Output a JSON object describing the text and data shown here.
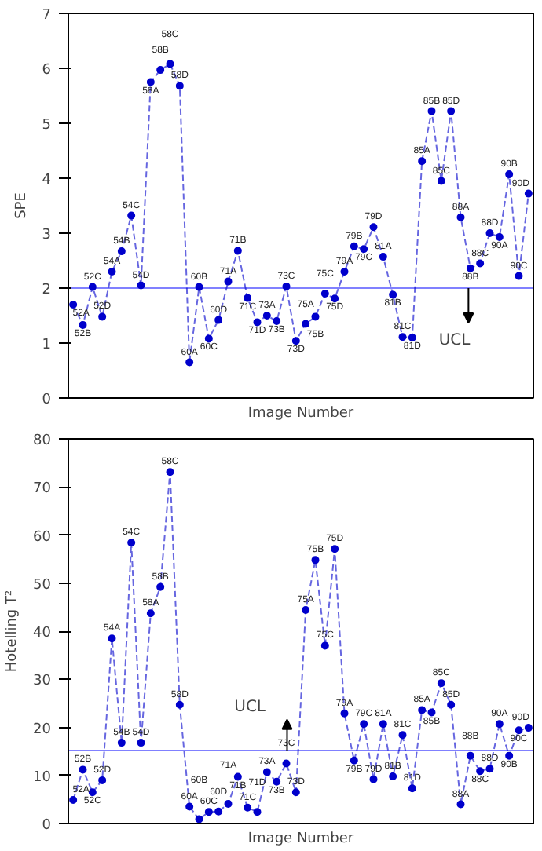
{
  "chart_data": [
    {
      "type": "line",
      "xlabel": "Image Number",
      "ylabel": "SPE",
      "categories": [
        "52A",
        "52B",
        "52C",
        "52D",
        "54A",
        "54B",
        "54C",
        "54D",
        "58A",
        "58B",
        "58C",
        "58D",
        "60A",
        "60B",
        "60C",
        "60D",
        "71A",
        "71B",
        "71C",
        "71D",
        "73A",
        "73B",
        "73C",
        "73D",
        "75A",
        "75B",
        "75C",
        "75D",
        "79A",
        "79B",
        "79C",
        "79D",
        "81A",
        "81B",
        "81C",
        "81D",
        "85A",
        "85B",
        "85C",
        "85D",
        "88A",
        "88B",
        "88C",
        "88D",
        "90A",
        "90B",
        "90C",
        "90D"
      ],
      "series": [
        {
          "color": "#0000cc",
          "values": [
            1.7,
            1.33,
            2.02,
            1.48,
            2.3,
            2.67,
            3.32,
            2.05,
            5.75,
            5.97,
            6.08,
            5.68,
            0.65,
            2.02,
            1.08,
            1.42,
            2.12,
            2.68,
            1.82,
            1.38,
            1.5,
            1.4,
            2.03,
            1.04,
            1.35,
            1.48,
            1.9,
            1.81,
            2.3,
            2.76,
            2.71,
            3.11,
            2.57,
            1.88,
            1.11,
            1.1,
            4.31,
            5.22,
            3.95,
            5.22,
            3.29,
            2.36,
            2.45,
            3.0,
            2.93,
            4.07,
            2.22,
            3.72
          ]
        }
      ],
      "ylim": [
        0,
        7
      ],
      "yticks": [
        0,
        1,
        2,
        3,
        4,
        5,
        6,
        7
      ],
      "marker": "circle",
      "line_style": "dashed",
      "grid": false,
      "tick_labels": "y",
      "ref_lines": [
        {
          "axis": "y",
          "value": 2,
          "label": "UCL",
          "color": "#8080ff"
        }
      ]
    },
    {
      "type": "line",
      "xlabel": "Image Number",
      "ylabel": "Hotelling T²",
      "categories": [
        "52A",
        "52B",
        "52C",
        "52D",
        "54A",
        "54B",
        "54C",
        "54D",
        "58A",
        "58B",
        "58C",
        "58D",
        "60A",
        "60B",
        "60C",
        "60D",
        "71A",
        "71B",
        "71C",
        "71D",
        "73A",
        "73B",
        "73C",
        "73D",
        "75A",
        "75B",
        "75C",
        "75D",
        "79A",
        "79B",
        "79C",
        "79D",
        "81A",
        "81B",
        "81C",
        "81D",
        "85A",
        "85B",
        "85C",
        "85D",
        "88A",
        "88B",
        "88C",
        "88D",
        "90A",
        "90B",
        "90C",
        "90D"
      ],
      "series": [
        {
          "color": "#0000cc",
          "values": [
            4.9,
            11.2,
            6.5,
            9.0,
            38.5,
            16.8,
            58.4,
            16.8,
            43.7,
            49.2,
            73.1,
            24.7,
            3.5,
            0.9,
            2.4,
            2.5,
            4.1,
            9.7,
            3.3,
            2.4,
            10.7,
            8.7,
            12.5,
            6.5,
            44.4,
            54.8,
            37.0,
            57.1,
            22.9,
            13.1,
            20.7,
            9.2,
            20.7,
            9.8,
            18.4,
            7.3,
            23.6,
            23.1,
            29.2,
            24.7,
            4.0,
            14.1,
            10.9,
            11.4,
            20.7,
            14.1,
            19.4,
            19.9
          ]
        }
      ],
      "ylim": [
        0,
        80
      ],
      "yticks": [
        0,
        10,
        20,
        30,
        40,
        50,
        60,
        70,
        80
      ],
      "marker": "circle",
      "line_style": "dashed",
      "grid": false,
      "tick_labels": "y",
      "ref_lines": [
        {
          "axis": "y",
          "value": 15.2,
          "label": "UCL",
          "color": "#8080ff"
        }
      ]
    }
  ]
}
